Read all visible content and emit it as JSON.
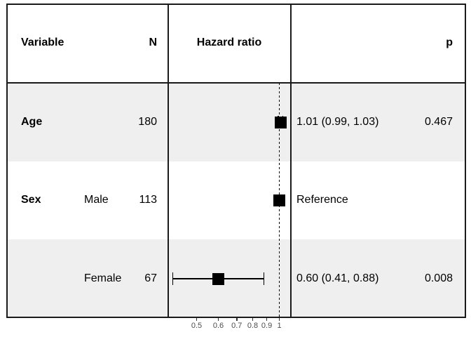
{
  "chart_data": {
    "type": "forest",
    "x_scale": "log",
    "x_ticks": [
      0.5,
      0.6,
      0.7,
      0.8,
      0.9,
      1
    ],
    "x_tick_labels": [
      "0.5",
      "0.6",
      "0.7",
      "0.8",
      "0.9",
      "1"
    ],
    "reference_line": 1,
    "columns": {
      "variable": "Variable",
      "n": "N",
      "hazard_ratio": "Hazard ratio",
      "p": "p"
    },
    "rows": [
      {
        "variable": "Age",
        "level": "",
        "n": "180",
        "hr": 1.01,
        "ci_low": 0.99,
        "ci_high": 1.03,
        "estimate_label": "1.01 (0.99, 1.03)",
        "p": "0.467"
      },
      {
        "variable": "Sex",
        "level": "Male",
        "n": "113",
        "hr": 1.0,
        "ci_low": null,
        "ci_high": null,
        "estimate_label": "Reference",
        "p": ""
      },
      {
        "variable": "",
        "level": "Female",
        "n": "67",
        "hr": 0.6,
        "ci_low": 0.41,
        "ci_high": 0.88,
        "estimate_label": "0.60 (0.41, 0.88)",
        "p": "0.008"
      }
    ]
  },
  "colors": {
    "row_shading": "#efefef",
    "frame": "#1a1a1a",
    "text": "#000000",
    "tick_label": "#4d4d4d",
    "marker": "#000000"
  }
}
